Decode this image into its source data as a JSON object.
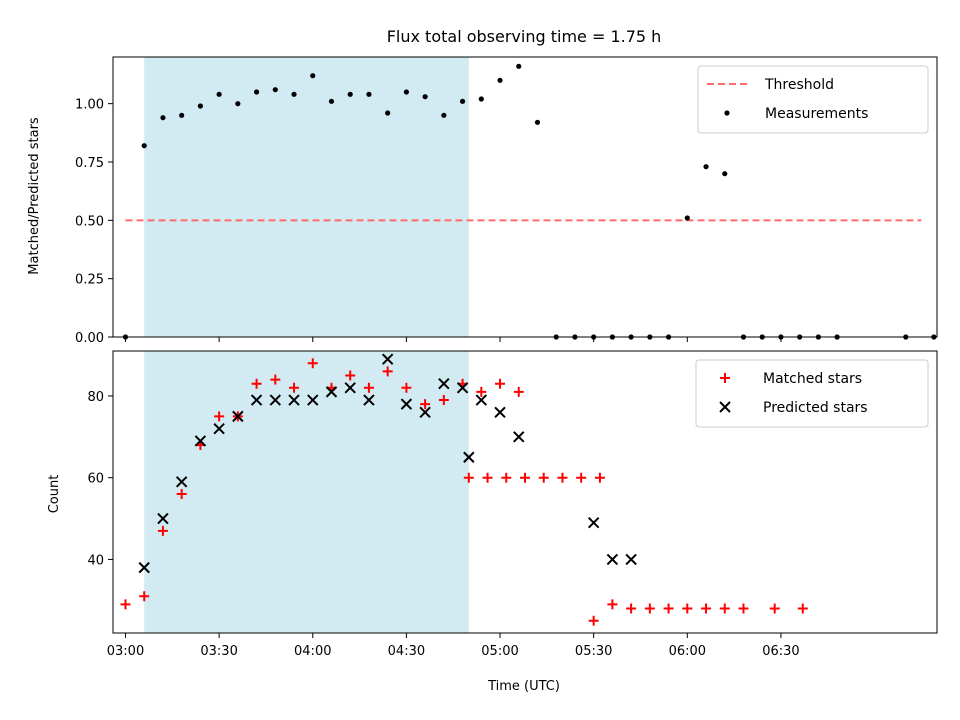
{
  "chart_data": [
    {
      "type": "scatter",
      "title": "Flux total observing time = 1.75 h",
      "ylabel": "Matched/Predicted stars",
      "xlabel": "",
      "xlim": [
        "02:56",
        "07:20"
      ],
      "ylim": [
        0,
        1.2
      ],
      "yticks": [
        0.0,
        0.25,
        0.5,
        0.75,
        1.0
      ],
      "ytick_labels": [
        "0.00",
        "0.25",
        "0.50",
        "0.75",
        "1.00"
      ],
      "shaded_span": [
        "03:06",
        "04:50"
      ],
      "shaded_color": "#add8e6",
      "threshold": {
        "name": "Threshold",
        "value": 0.5,
        "x_from": "03:00",
        "x_to": "07:15",
        "color": "#ff6b6b"
      },
      "series": [
        {
          "name": "Measurements",
          "color": "#000000",
          "points": [
            [
              "03:00",
              0.0
            ],
            [
              "03:06",
              0.82
            ],
            [
              "03:12",
              0.94
            ],
            [
              "03:18",
              0.95
            ],
            [
              "03:24",
              0.99
            ],
            [
              "03:30",
              1.04
            ],
            [
              "03:36",
              1.0
            ],
            [
              "03:42",
              1.05
            ],
            [
              "03:48",
              1.06
            ],
            [
              "03:54",
              1.04
            ],
            [
              "04:00",
              1.12
            ],
            [
              "04:06",
              1.01
            ],
            [
              "04:12",
              1.04
            ],
            [
              "04:18",
              1.04
            ],
            [
              "04:24",
              0.96
            ],
            [
              "04:30",
              1.05
            ],
            [
              "04:36",
              1.03
            ],
            [
              "04:42",
              0.95
            ],
            [
              "04:48",
              1.01
            ],
            [
              "04:54",
              1.02
            ],
            [
              "05:00",
              1.1
            ],
            [
              "05:06",
              1.16
            ],
            [
              "05:12",
              0.92
            ],
            [
              "05:18",
              0.0
            ],
            [
              "05:24",
              0.0
            ],
            [
              "05:30",
              0.0
            ],
            [
              "05:36",
              0.0
            ],
            [
              "05:42",
              0.0
            ],
            [
              "05:48",
              0.0
            ],
            [
              "05:54",
              0.0
            ],
            [
              "06:00",
              0.51
            ],
            [
              "06:06",
              0.73
            ],
            [
              "06:12",
              0.7
            ],
            [
              "06:18",
              0.0
            ],
            [
              "06:24",
              0.0
            ],
            [
              "06:30",
              0.0
            ],
            [
              "06:36",
              0.0
            ],
            [
              "06:42",
              0.0
            ],
            [
              "06:48",
              0.0
            ],
            [
              "07:10",
              0.0
            ],
            [
              "07:19",
              0.0
            ]
          ]
        }
      ]
    },
    {
      "type": "scatter",
      "title": "",
      "ylabel": "Count",
      "xlabel": "Time (UTC)",
      "xlim": [
        "02:56",
        "07:20"
      ],
      "ylim": [
        22,
        91
      ],
      "yticks": [
        40,
        60,
        80
      ],
      "ytick_labels": [
        "40",
        "60",
        "80"
      ],
      "xticks": [
        "03:00",
        "03:30",
        "04:00",
        "04:30",
        "05:00",
        "05:30",
        "06:00",
        "06:30"
      ],
      "xtick_labels": [
        "03:00",
        "03:30",
        "04:00",
        "04:30",
        "05:00",
        "05:30",
        "06:00",
        "06:30"
      ],
      "shaded_span": [
        "03:06",
        "04:50"
      ],
      "series": [
        {
          "name": "Matched stars",
          "color": "#ff0000",
          "marker": "+",
          "points": [
            [
              "03:00",
              29
            ],
            [
              "03:06",
              31
            ],
            [
              "03:12",
              47
            ],
            [
              "03:18",
              56
            ],
            [
              "03:24",
              68
            ],
            [
              "03:30",
              75
            ],
            [
              "03:36",
              75
            ],
            [
              "03:42",
              83
            ],
            [
              "03:48",
              84
            ],
            [
              "03:54",
              82
            ],
            [
              "04:00",
              88
            ],
            [
              "04:06",
              82
            ],
            [
              "04:12",
              85
            ],
            [
              "04:18",
              82
            ],
            [
              "04:24",
              86
            ],
            [
              "04:30",
              82
            ],
            [
              "04:36",
              78
            ],
            [
              "04:42",
              79
            ],
            [
              "04:48",
              83
            ],
            [
              "04:54",
              81
            ],
            [
              "05:00",
              83
            ],
            [
              "05:06",
              81
            ],
            [
              "04:50",
              60
            ],
            [
              "04:56",
              60
            ],
            [
              "05:02",
              60
            ],
            [
              "05:08",
              60
            ],
            [
              "05:14",
              60
            ],
            [
              "05:20",
              60
            ],
            [
              "05:26",
              60
            ],
            [
              "05:32",
              60
            ],
            [
              "05:30",
              25
            ],
            [
              "05:36",
              29
            ],
            [
              "05:42",
              28
            ],
            [
              "05:48",
              28
            ],
            [
              "05:54",
              28
            ],
            [
              "06:00",
              28
            ],
            [
              "06:06",
              28
            ],
            [
              "06:12",
              28
            ],
            [
              "06:18",
              28
            ],
            [
              "06:28",
              28
            ],
            [
              "06:37",
              28
            ]
          ]
        },
        {
          "name": "Predicted stars",
          "color": "#000000",
          "marker": "x",
          "points": [
            [
              "03:06",
              38
            ],
            [
              "03:12",
              50
            ],
            [
              "03:18",
              59
            ],
            [
              "03:24",
              69
            ],
            [
              "03:30",
              72
            ],
            [
              "03:36",
              75
            ],
            [
              "03:42",
              79
            ],
            [
              "03:48",
              79
            ],
            [
              "03:54",
              79
            ],
            [
              "04:00",
              79
            ],
            [
              "04:06",
              81
            ],
            [
              "04:12",
              82
            ],
            [
              "04:18",
              79
            ],
            [
              "04:24",
              89
            ],
            [
              "04:30",
              78
            ],
            [
              "04:36",
              76
            ],
            [
              "04:42",
              83
            ],
            [
              "04:48",
              82
            ],
            [
              "04:54",
              79
            ],
            [
              "05:00",
              76
            ],
            [
              "05:06",
              70
            ],
            [
              "04:50",
              65
            ],
            [
              "05:30",
              49
            ],
            [
              "05:36",
              40
            ],
            [
              "05:42",
              40
            ]
          ]
        }
      ]
    }
  ]
}
